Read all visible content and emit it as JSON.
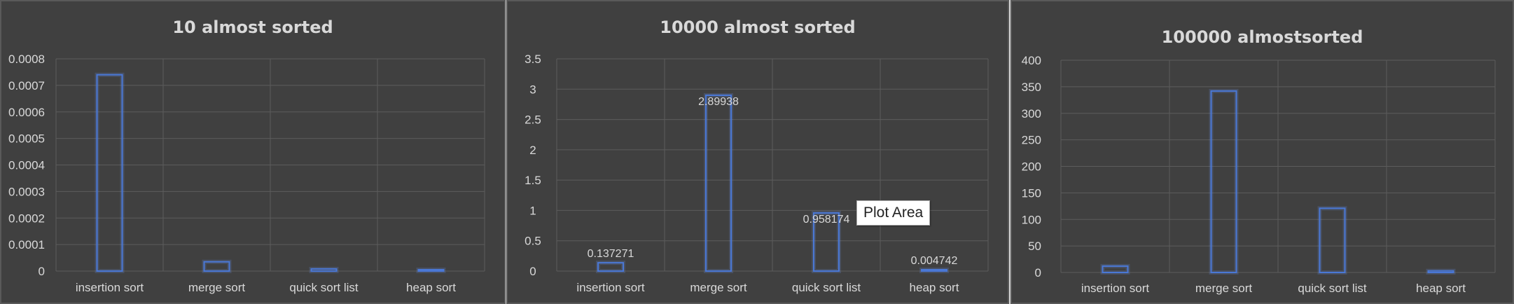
{
  "chart_data": [
    {
      "type": "bar",
      "title": "10 almost sorted",
      "categories": [
        "insertion sort",
        "merge sort",
        "quick sort list",
        "heap sort"
      ],
      "values": [
        0.00074,
        3.5e-05,
        8e-06,
        3e-06
      ],
      "ylim": [
        0,
        0.0008
      ],
      "yticks": [
        "0",
        "0.0001",
        "0.0002",
        "0.0003",
        "0.0004",
        "0.0005",
        "0.0006",
        "0.0007",
        "0.0008"
      ],
      "data_labels": [
        "",
        "",
        "",
        ""
      ],
      "grid": true,
      "bar_color": "#4a78d6"
    },
    {
      "type": "bar",
      "title": "10000 almost sorted",
      "categories": [
        "insertion sort",
        "merge sort",
        "quick sort list",
        "heap sort"
      ],
      "values": [
        0.137271,
        2.89938,
        0.958174,
        0.004742
      ],
      "ylim": [
        0,
        3.5
      ],
      "yticks": [
        "0",
        "0.5",
        "1",
        "1.5",
        "2",
        "2.5",
        "3",
        "3.5"
      ],
      "data_labels": [
        "0.137271",
        "2.89938",
        "0.958174",
        "0.004742"
      ],
      "grid": true,
      "bar_color": "#4a78d6"
    },
    {
      "type": "bar",
      "title": "100000 almostsorted",
      "categories": [
        "insertion sort",
        "merge sort",
        "quick sort list",
        "heap sort"
      ],
      "values": [
        12,
        342,
        121,
        3
      ],
      "ylim": [
        0,
        400
      ],
      "yticks": [
        "0",
        "50",
        "100",
        "150",
        "200",
        "250",
        "300",
        "350",
        "400"
      ],
      "data_labels": [
        "",
        "",
        "",
        ""
      ],
      "grid": true,
      "bar_color": "#4a78d6"
    }
  ],
  "tooltip": {
    "text": "Plot Area"
  }
}
